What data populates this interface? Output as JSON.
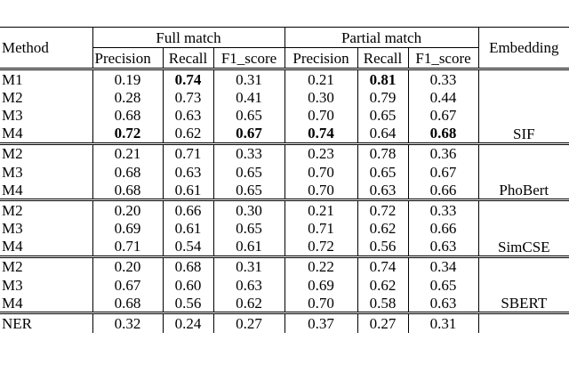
{
  "table": {
    "headers": {
      "method": "Method",
      "full_match": "Full match",
      "partial_match": "Partial match",
      "embedding": "Embedding",
      "metrics": [
        "Precision",
        "Recall",
        "F1_score"
      ]
    },
    "groups": [
      {
        "embedding": "SIF",
        "rows": [
          {
            "method": "M1",
            "values": [
              "0.19",
              "0.74",
              "0.31",
              "0.21",
              "0.81",
              "0.33"
            ],
            "bold": [
              1,
              4
            ]
          },
          {
            "method": "M2",
            "values": [
              "0.28",
              "0.73",
              "0.41",
              "0.30",
              "0.79",
              "0.44"
            ],
            "bold": []
          },
          {
            "method": "M3",
            "values": [
              "0.68",
              "0.63",
              "0.65",
              "0.70",
              "0.65",
              "0.67"
            ],
            "bold": []
          },
          {
            "method": "M4",
            "values": [
              "0.72",
              "0.62",
              "0.67",
              "0.74",
              "0.64",
              "0.68"
            ],
            "bold": [
              0,
              2,
              3,
              5
            ]
          }
        ]
      },
      {
        "embedding": "PhoBert",
        "rows": [
          {
            "method": "M2",
            "values": [
              "0.21",
              "0.71",
              "0.33",
              "0.23",
              "0.78",
              "0.36"
            ],
            "bold": []
          },
          {
            "method": "M3",
            "values": [
              "0.68",
              "0.63",
              "0.65",
              "0.70",
              "0.65",
              "0.67"
            ],
            "bold": []
          },
          {
            "method": "M4",
            "values": [
              "0.68",
              "0.61",
              "0.65",
              "0.70",
              "0.63",
              "0.66"
            ],
            "bold": []
          }
        ]
      },
      {
        "embedding": "SimCSE",
        "rows": [
          {
            "method": "M2",
            "values": [
              "0.20",
              "0.66",
              "0.30",
              "0.21",
              "0.72",
              "0.33"
            ],
            "bold": []
          },
          {
            "method": "M3",
            "values": [
              "0.69",
              "0.61",
              "0.65",
              "0.71",
              "0.62",
              "0.66"
            ],
            "bold": []
          },
          {
            "method": "M4",
            "values": [
              "0.71",
              "0.54",
              "0.61",
              "0.72",
              "0.56",
              "0.63"
            ],
            "bold": []
          }
        ]
      },
      {
        "embedding": "SBERT",
        "rows": [
          {
            "method": "M2",
            "values": [
              "0.20",
              "0.68",
              "0.31",
              "0.22",
              "0.74",
              "0.34"
            ],
            "bold": []
          },
          {
            "method": "M3",
            "values": [
              "0.67",
              "0.60",
              "0.63",
              "0.69",
              "0.62",
              "0.65"
            ],
            "bold": []
          },
          {
            "method": "M4",
            "values": [
              "0.68",
              "0.56",
              "0.62",
              "0.70",
              "0.58",
              "0.63"
            ],
            "bold": []
          }
        ]
      },
      {
        "rows": [
          {
            "method": "NER",
            "values": [
              "0.32",
              "0.24",
              "0.27",
              "0.37",
              "0.27",
              "0.31"
            ],
            "bold": []
          }
        ]
      }
    ]
  }
}
